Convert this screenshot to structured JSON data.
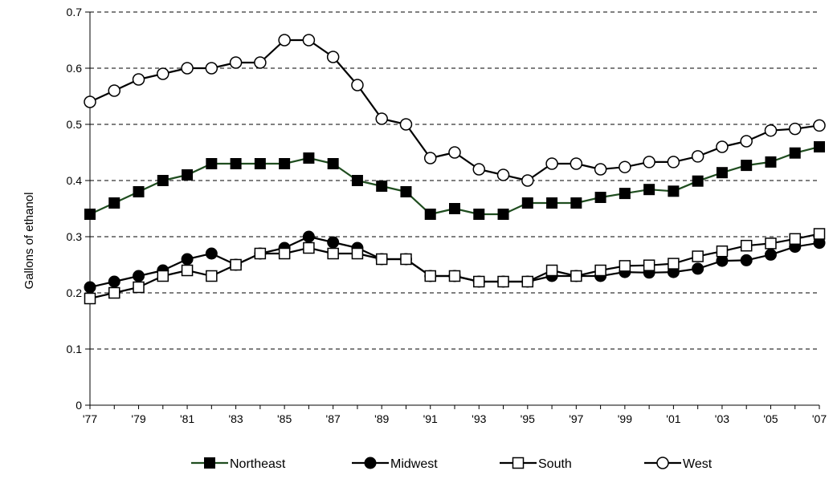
{
  "chart_data": {
    "type": "line",
    "title": "",
    "xlabel": "",
    "ylabel": "Gallons of ethanol",
    "ylim": [
      0,
      0.7
    ],
    "yticks": [
      "0",
      "0.1",
      "0.2",
      "0.3",
      "0.4",
      "0.5",
      "0.6",
      "0.7"
    ],
    "x": [
      1977,
      1978,
      1979,
      1980,
      1981,
      1982,
      1983,
      1984,
      1985,
      1986,
      1987,
      1988,
      1989,
      1990,
      1991,
      1992,
      1993,
      1994,
      1995,
      1996,
      1997,
      1998,
      1999,
      2000,
      2001,
      2002,
      2003,
      2004,
      2005,
      2006,
      2007
    ],
    "xticks": [
      "'77",
      "'79",
      "'81",
      "'83",
      "'85",
      "'87",
      "'89",
      "'91",
      "'93",
      "'95",
      "'97",
      "'99",
      "'01",
      "'03",
      "'05",
      "'07"
    ],
    "grid": "horizontal dashed",
    "legend_position": "bottom",
    "series": [
      {
        "name": "Northeast",
        "marker": "square-filled",
        "line_color": "#1f4d1f",
        "marker_color": "#000000",
        "values": [
          0.34,
          0.36,
          0.38,
          0.4,
          0.41,
          0.43,
          0.43,
          0.43,
          0.43,
          0.44,
          0.43,
          0.4,
          0.39,
          0.38,
          0.34,
          0.35,
          0.34,
          0.34,
          0.36,
          0.36,
          0.36,
          0.37,
          0.377,
          0.384,
          0.381,
          0.399,
          0.414,
          0.427,
          0.433,
          0.449,
          0.46
        ]
      },
      {
        "name": "Midwest",
        "marker": "circle-filled",
        "line_color": "#000000",
        "marker_color": "#000000",
        "values": [
          0.21,
          0.22,
          0.23,
          0.24,
          0.26,
          0.27,
          0.25,
          0.27,
          0.28,
          0.3,
          0.29,
          0.28,
          0.26,
          0.26,
          0.23,
          0.23,
          0.22,
          0.22,
          0.22,
          0.23,
          0.23,
          0.23,
          0.237,
          0.236,
          0.237,
          0.243,
          0.257,
          0.258,
          0.268,
          0.282,
          0.289
        ]
      },
      {
        "name": "South",
        "marker": "square-open",
        "line_color": "#000000",
        "marker_color": "#000000",
        "values": [
          0.19,
          0.2,
          0.21,
          0.23,
          0.24,
          0.23,
          0.25,
          0.27,
          0.27,
          0.28,
          0.27,
          0.27,
          0.26,
          0.26,
          0.23,
          0.23,
          0.22,
          0.22,
          0.22,
          0.24,
          0.23,
          0.24,
          0.248,
          0.249,
          0.252,
          0.265,
          0.274,
          0.284,
          0.288,
          0.296,
          0.305
        ]
      },
      {
        "name": "West",
        "marker": "circle-open",
        "line_color": "#000000",
        "marker_color": "#000000",
        "values": [
          0.54,
          0.56,
          0.58,
          0.59,
          0.6,
          0.6,
          0.61,
          0.61,
          0.65,
          0.65,
          0.62,
          0.57,
          0.51,
          0.5,
          0.44,
          0.45,
          0.42,
          0.41,
          0.4,
          0.43,
          0.43,
          0.42,
          0.424,
          0.433,
          0.433,
          0.443,
          0.46,
          0.47,
          0.489,
          0.492,
          0.498
        ]
      }
    ]
  }
}
